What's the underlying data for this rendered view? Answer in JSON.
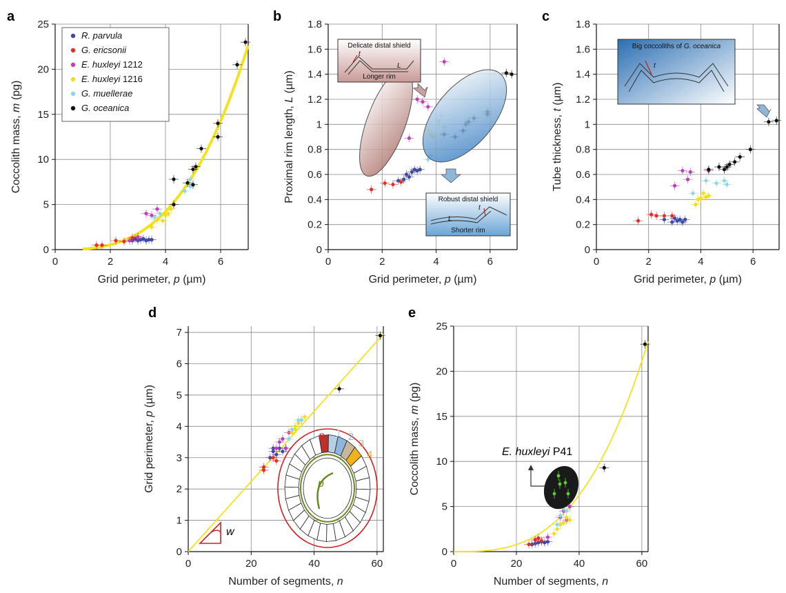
{
  "colors": {
    "R. parvula": "#3f4aa8",
    "G. ericsonii": "#e0302a",
    "E. huxleyi 1212": "#c040b8",
    "E. huxleyi 1216": "#f2de1c",
    "G. muellerae": "#8fd6e6",
    "G. oceanica": "#111111",
    "fit": "#f4e21c"
  },
  "chart_data": [
    {
      "panel": "a",
      "type": "scatter",
      "xlabel": "Grid perimeter, p (µm)",
      "ylabel": "Coccolith mass, m (pg)",
      "xlim": [
        0,
        7
      ],
      "ylim": [
        0,
        25
      ],
      "xticks": [
        0,
        2,
        4,
        6
      ],
      "yticks": [
        0,
        5,
        10,
        15,
        20,
        25
      ],
      "grid": true,
      "legend": {
        "placement": "top-left",
        "entries": [
          {
            "species": "R. parvula",
            "label": "R. parvula",
            "suffix": ""
          },
          {
            "species": "G. ericsonii",
            "label": "G. ericsonii",
            "suffix": ""
          },
          {
            "species": "E. huxleyi 1212",
            "label": "E. huxleyi",
            "suffix": " 1212"
          },
          {
            "species": "E. huxleyi 1216",
            "label": "E. huxleyi",
            "suffix": " 1216"
          },
          {
            "species": "G. muellerae",
            "label": "G. muellerae",
            "suffix": ""
          },
          {
            "species": "G. oceanica",
            "label": "G. oceanica",
            "suffix": ""
          }
        ]
      },
      "fit": {
        "kind": "power",
        "coef": 0.066,
        "exp": 3.0,
        "x_range": [
          1.0,
          7.0
        ]
      },
      "series": [
        {
          "name": "R. parvula",
          "points": [
            [
              2.9,
              1.2
            ],
            [
              3.0,
              1.0
            ],
            [
              3.1,
              1.1
            ],
            [
              3.2,
              1.2
            ],
            [
              3.3,
              1.0
            ],
            [
              3.4,
              1.1
            ],
            [
              3.5,
              1.1
            ],
            [
              2.8,
              1.0
            ]
          ]
        },
        {
          "name": "G. ericsonii",
          "points": [
            [
              1.5,
              0.5
            ],
            [
              1.7,
              0.5
            ],
            [
              2.2,
              1.0
            ],
            [
              2.5,
              0.9
            ],
            [
              2.8,
              1.3
            ],
            [
              3.0,
              1.4
            ]
          ]
        },
        {
          "name": "E. huxleyi 1212",
          "points": [
            [
              3.3,
              4.0
            ],
            [
              3.5,
              3.8
            ],
            [
              3.7,
              4.5
            ],
            [
              3.0,
              1.4
            ],
            [
              2.7,
              1.0
            ]
          ]
        },
        {
          "name": "E. huxleyi 1216",
          "points": [
            [
              3.5,
              2.5
            ],
            [
              3.9,
              3.2
            ],
            [
              4.0,
              3.8
            ],
            [
              4.1,
              4.0
            ],
            [
              4.2,
              4.5
            ],
            [
              3.7,
              3.3
            ]
          ]
        },
        {
          "name": "G. muellerae",
          "points": [
            [
              3.6,
              3.6
            ],
            [
              4.7,
              6.5
            ],
            [
              4.9,
              7.0
            ],
            [
              4.9,
              7.8
            ],
            [
              3.8,
              4.0
            ]
          ]
        },
        {
          "name": "G. oceanica",
          "points": [
            [
              4.3,
              7.8
            ],
            [
              4.8,
              7.4
            ],
            [
              5.0,
              7.2
            ],
            [
              5.0,
              8.9
            ],
            [
              5.1,
              9.2
            ],
            [
              5.3,
              11.2
            ],
            [
              5.9,
              12.5
            ],
            [
              5.9,
              14.0
            ],
            [
              6.6,
              20.5
            ],
            [
              6.9,
              23.0
            ],
            [
              4.3,
              5.0
            ]
          ]
        }
      ]
    },
    {
      "panel": "b",
      "type": "scatter",
      "xlabel": "Grid perimeter, p (µm)",
      "ylabel": "Proximal rim length, L (µm)",
      "xlim": [
        0,
        7
      ],
      "ylim": [
        0,
        1.8
      ],
      "xticks": [
        0,
        2,
        4,
        6
      ],
      "yticks": [
        0,
        0.2,
        0.4,
        0.6,
        0.8,
        1,
        1.2,
        1.4,
        1.6,
        1.8
      ],
      "grid": true,
      "annotations": [
        {
          "title": "Delicate distal shield",
          "t": "t",
          "L": "L",
          "caption": "Longer rim"
        },
        {
          "title": "Robust distal shield",
          "t": "t",
          "L": "L",
          "caption": "Shorter rim"
        }
      ],
      "series": [
        {
          "name": "R. parvula",
          "points": [
            [
              2.6,
              0.55
            ],
            [
              2.8,
              0.56
            ],
            [
              3.0,
              0.58
            ],
            [
              3.1,
              0.62
            ],
            [
              3.2,
              0.64
            ],
            [
              3.3,
              0.63
            ],
            [
              3.4,
              0.64
            ],
            [
              2.9,
              0.6
            ]
          ]
        },
        {
          "name": "G. ericsonii",
          "points": [
            [
              1.6,
              0.48
            ],
            [
              2.1,
              0.53
            ],
            [
              2.4,
              0.52
            ],
            [
              2.7,
              0.54
            ]
          ]
        },
        {
          "name": "E. huxleyi 1212",
          "points": [
            [
              3.0,
              0.89
            ],
            [
              3.3,
              1.2
            ],
            [
              3.5,
              1.18
            ],
            [
              3.7,
              1.14
            ],
            [
              4.3,
              1.5
            ]
          ]
        },
        {
          "name": "E. huxleyi 1216",
          "points": [
            [
              3.7,
              0.95
            ],
            [
              3.8,
              0.92
            ],
            [
              3.9,
              0.9
            ],
            [
              4.0,
              0.8
            ],
            [
              4.2,
              0.92
            ],
            [
              4.1,
              1.0
            ]
          ]
        },
        {
          "name": "G. muellerae",
          "points": [
            [
              3.7,
              0.72
            ],
            [
              4.1,
              1.03
            ],
            [
              4.2,
              1.07
            ],
            [
              4.3,
              0.98
            ],
            [
              3.8,
              0.75
            ]
          ]
        },
        {
          "name": "G. oceanica",
          "points": [
            [
              4.3,
              0.92
            ],
            [
              4.7,
              0.9
            ],
            [
              5.0,
              0.95
            ],
            [
              5.1,
              1.0
            ],
            [
              5.2,
              1.02
            ],
            [
              5.4,
              1.05
            ],
            [
              5.9,
              1.08
            ],
            [
              5.9,
              1.1
            ],
            [
              6.6,
              1.41
            ],
            [
              6.8,
              1.4
            ]
          ]
        }
      ]
    },
    {
      "panel": "c",
      "type": "scatter",
      "xlabel": "Grid perimeter, p (µm)",
      "ylabel": "Tube thickness, t (µm)",
      "xlim": [
        0,
        7
      ],
      "ylim": [
        0,
        1.8
      ],
      "xticks": [
        0,
        2,
        4,
        6
      ],
      "yticks": [
        0,
        0.2,
        0.4,
        0.6,
        0.8,
        1,
        1.2,
        1.4,
        1.6,
        1.8
      ],
      "grid": true,
      "annotations": [
        {
          "title_prefix": "Big coccoliths of ",
          "title_species": "G. oceanica",
          "t": "t"
        }
      ],
      "series": [
        {
          "name": "R. parvula",
          "points": [
            [
              2.9,
              0.22
            ],
            [
              3.1,
              0.23
            ],
            [
              3.2,
              0.24
            ],
            [
              3.3,
              0.22
            ],
            [
              3.4,
              0.24
            ],
            [
              3.0,
              0.25
            ],
            [
              2.6,
              0.24
            ]
          ]
        },
        {
          "name": "G. ericsonii",
          "points": [
            [
              1.6,
              0.23
            ],
            [
              2.1,
              0.28
            ],
            [
              2.3,
              0.27
            ],
            [
              2.6,
              0.27
            ],
            [
              2.9,
              0.27
            ]
          ]
        },
        {
          "name": "E. huxleyi 1212",
          "points": [
            [
              3.0,
              0.51
            ],
            [
              3.3,
              0.63
            ],
            [
              3.6,
              0.62
            ],
            [
              3.5,
              0.56
            ],
            [
              4.3,
              0.63
            ]
          ]
        },
        {
          "name": "E. huxleyi 1216",
          "points": [
            [
              3.8,
              0.36
            ],
            [
              4.0,
              0.41
            ],
            [
              4.1,
              0.45
            ],
            [
              4.2,
              0.42
            ],
            [
              4.3,
              0.43
            ],
            [
              3.9,
              0.4
            ]
          ]
        },
        {
          "name": "G. muellerae",
          "points": [
            [
              3.7,
              0.45
            ],
            [
              4.6,
              0.53
            ],
            [
              4.9,
              0.55
            ],
            [
              5.0,
              0.52
            ],
            [
              4.2,
              0.55
            ]
          ]
        },
        {
          "name": "G. oceanica",
          "points": [
            [
              4.3,
              0.64
            ],
            [
              4.7,
              0.66
            ],
            [
              4.9,
              0.64
            ],
            [
              5.0,
              0.66
            ],
            [
              5.1,
              0.68
            ],
            [
              5.3,
              0.7
            ],
            [
              5.5,
              0.74
            ],
            [
              5.9,
              0.8
            ],
            [
              6.6,
              1.02
            ],
            [
              6.9,
              1.03
            ]
          ]
        }
      ]
    },
    {
      "panel": "d",
      "type": "scatter",
      "xlabel": "Number of segments, n",
      "ylabel": "Grid perimeter, p (µm)",
      "xlim": [
        0,
        62
      ],
      "ylim": [
        0,
        7.2
      ],
      "xticks": [
        0,
        20,
        40,
        60
      ],
      "yticks": [
        0,
        1,
        2,
        3,
        4,
        5,
        6,
        7
      ],
      "grid": true,
      "fit": {
        "kind": "linear",
        "slope": 0.112,
        "intercept": 0.0,
        "x_range": [
          0,
          62
        ]
      },
      "annotations": [
        {
          "n": "n",
          "segments": [
            "1",
            "2",
            "3",
            "4"
          ],
          "p": "p",
          "w": "w"
        }
      ],
      "series": [
        {
          "name": "R. parvula",
          "points": [
            [
              26,
              3.0
            ],
            [
              27,
              3.2
            ],
            [
              28,
              3.1
            ],
            [
              29,
              3.3
            ],
            [
              30,
              3.2
            ],
            [
              31,
              3.3
            ],
            [
              27,
              3.3
            ]
          ]
        },
        {
          "name": "G. ericsonii",
          "points": [
            [
              24,
              2.6
            ],
            [
              24,
              2.7
            ],
            [
              27,
              3.0
            ],
            [
              28,
              2.9
            ]
          ]
        },
        {
          "name": "E. huxleyi 1212",
          "points": [
            [
              28,
              3.3
            ],
            [
              29,
              3.5
            ],
            [
              30,
              3.6
            ],
            [
              31,
              3.3
            ],
            [
              32,
              3.8
            ]
          ]
        },
        {
          "name": "E. huxleyi 1216",
          "points": [
            [
              33,
              3.8
            ],
            [
              34,
              3.9
            ],
            [
              35,
              4.1
            ],
            [
              36,
              4.2
            ],
            [
              37,
              4.3
            ],
            [
              34,
              4.0
            ]
          ]
        },
        {
          "name": "G. muellerae",
          "points": [
            [
              32,
              3.6
            ],
            [
              33,
              3.9
            ],
            [
              35,
              4.2
            ],
            [
              36,
              4.2
            ]
          ]
        },
        {
          "name": "G. oceanica",
          "points": [
            [
              48,
              5.2
            ],
            [
              61,
              6.9
            ]
          ]
        }
      ]
    },
    {
      "panel": "e",
      "type": "scatter",
      "xlabel": "Number of segments, n",
      "ylabel": "Coccolith mass, m (pg)",
      "xlim": [
        0,
        62
      ],
      "ylim": [
        0,
        25
      ],
      "xticks": [
        0,
        20,
        40,
        60
      ],
      "yticks": [
        0,
        5,
        10,
        15,
        20,
        25
      ],
      "grid": true,
      "fit": {
        "kind": "power",
        "coef": 9.77e-05,
        "exp": 3.0,
        "x_range": [
          0,
          62
        ]
      },
      "annotations": [
        {
          "label_species": "E. huxleyi",
          "label_suffix": " P41"
        }
      ],
      "series": [
        {
          "name": "R. parvula",
          "points": [
            [
              26,
              0.9
            ],
            [
              27,
              1.0
            ],
            [
              28,
              1.1
            ],
            [
              29,
              1.0
            ],
            [
              30,
              1.1
            ],
            [
              25,
              0.8
            ]
          ]
        },
        {
          "name": "G. ericsonii",
          "points": [
            [
              24,
              0.8
            ],
            [
              26,
              1.3
            ],
            [
              27,
              1.5
            ],
            [
              28,
              1.2
            ]
          ]
        },
        {
          "name": "E. huxleyi 1212",
          "points": [
            [
              34,
              3.8
            ],
            [
              35,
              4.5
            ],
            [
              36,
              3.5
            ],
            [
              37,
              5.0
            ],
            [
              30,
              1.6
            ]
          ]
        },
        {
          "name": "E. huxleyi 1216",
          "points": [
            [
              33,
              2.5
            ],
            [
              34,
              3.0
            ],
            [
              35,
              3.2
            ],
            [
              36,
              3.8
            ],
            [
              37,
              3.5
            ],
            [
              32,
              2.0
            ]
          ]
        },
        {
          "name": "G. muellerae",
          "points": [
            [
              33,
              3.0
            ],
            [
              34,
              4.0
            ],
            [
              36,
              4.5
            ],
            [
              35,
              4.8
            ]
          ]
        },
        {
          "name": "G. oceanica",
          "points": [
            [
              48,
              9.3
            ],
            [
              61,
              23.0
            ]
          ]
        }
      ]
    }
  ]
}
